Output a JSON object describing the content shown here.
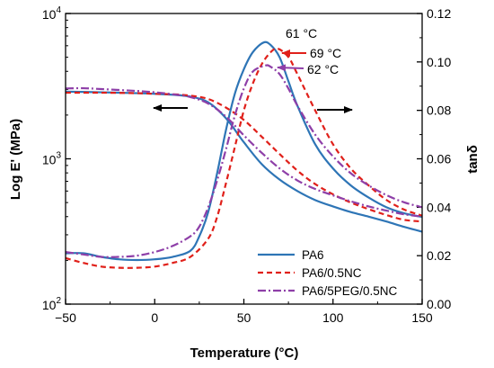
{
  "chart_data": {
    "type": "line",
    "title": "",
    "xlabel": "Temperature (°C)",
    "ylabel_left": "Log E' (MPa)",
    "ylabel_right": "tanδ",
    "xlim": [
      -50,
      150
    ],
    "ylim_left": [
      100,
      10000
    ],
    "yscale_left": "log",
    "ylim_right": [
      0,
      0.12
    ],
    "grid": false,
    "legend_position": "bottom-right",
    "x_ticks": [
      -50,
      0,
      50,
      100,
      150
    ],
    "y_left_ticks": [
      {
        "value": 100,
        "base": "10",
        "exp": "2"
      },
      {
        "value": 1000,
        "base": "10",
        "exp": "3"
      },
      {
        "value": 10000,
        "base": "10",
        "exp": "4"
      }
    ],
    "y_right_ticks": [
      "0.00",
      "0.02",
      "0.04",
      "0.06",
      "0.08",
      "0.10",
      "0.12"
    ],
    "series": [
      {
        "name": "PA6",
        "color": "#2e75b6",
        "dash": "solid",
        "storage_modulus": {
          "x": [
            -50,
            -30,
            -10,
            0,
            10,
            20,
            30,
            40,
            50,
            60,
            70,
            80,
            90,
            100,
            110,
            120,
            130,
            140,
            150
          ],
          "y": [
            2900,
            2870,
            2830,
            2800,
            2760,
            2680,
            2450,
            1900,
            1300,
            920,
            720,
            600,
            520,
            470,
            430,
            400,
            370,
            340,
            315
          ]
        },
        "tan_delta": {
          "x": [
            -50,
            -40,
            -30,
            -20,
            -10,
            0,
            10,
            20,
            25,
            30,
            35,
            40,
            45,
            50,
            55,
            61,
            65,
            70,
            75,
            80,
            90,
            100,
            110,
            120,
            130,
            140,
            150
          ],
          "y": [
            0.021,
            0.021,
            0.0195,
            0.0185,
            0.0182,
            0.0185,
            0.0195,
            0.022,
            0.028,
            0.038,
            0.054,
            0.072,
            0.087,
            0.097,
            0.104,
            0.108,
            0.107,
            0.102,
            0.092,
            0.082,
            0.066,
            0.056,
            0.049,
            0.044,
            0.04,
            0.0375,
            0.036
          ]
        }
      },
      {
        "name": "PA6/0.5NC",
        "color": "#e0201a",
        "dash": "dashed",
        "storage_modulus": {
          "x": [
            -50,
            -30,
            -10,
            0,
            10,
            20,
            30,
            40,
            50,
            60,
            70,
            80,
            90,
            100,
            110,
            120,
            130,
            140,
            150
          ],
          "y": [
            2850,
            2850,
            2830,
            2800,
            2780,
            2720,
            2580,
            2250,
            1850,
            1420,
            1080,
            830,
            670,
            570,
            500,
            450,
            410,
            380,
            370
          ]
        },
        "tan_delta": {
          "x": [
            -50,
            -40,
            -30,
            -20,
            -10,
            0,
            10,
            20,
            30,
            35,
            40,
            45,
            50,
            55,
            60,
            65,
            69,
            75,
            80,
            90,
            100,
            110,
            120,
            130,
            140,
            150
          ],
          "y": [
            0.019,
            0.017,
            0.0155,
            0.015,
            0.015,
            0.0155,
            0.017,
            0.0195,
            0.027,
            0.036,
            0.05,
            0.065,
            0.08,
            0.091,
            0.099,
            0.104,
            0.1055,
            0.102,
            0.095,
            0.08,
            0.066,
            0.056,
            0.049,
            0.043,
            0.039,
            0.0365
          ]
        }
      },
      {
        "name": "PA6/5PEG/0.5NC",
        "color": "#8e3fa8",
        "dash": "dash-dot",
        "storage_modulus": {
          "x": [
            -50,
            -40,
            -30,
            -10,
            0,
            10,
            20,
            30,
            40,
            50,
            60,
            70,
            80,
            90,
            100,
            110,
            120,
            130,
            140,
            150
          ],
          "y": [
            3050,
            3060,
            3020,
            2930,
            2870,
            2780,
            2660,
            2400,
            1950,
            1450,
            1100,
            860,
            710,
            620,
            560,
            510,
            470,
            440,
            415,
            400
          ]
        },
        "tan_delta": {
          "x": [
            -50,
            -40,
            -30,
            -20,
            -10,
            0,
            10,
            20,
            25,
            30,
            35,
            40,
            45,
            50,
            55,
            62,
            65,
            70,
            75,
            80,
            90,
            100,
            110,
            120,
            130,
            140,
            150
          ],
          "y": [
            0.0215,
            0.0205,
            0.0195,
            0.0195,
            0.02,
            0.0215,
            0.024,
            0.028,
            0.032,
            0.04,
            0.051,
            0.064,
            0.078,
            0.089,
            0.096,
            0.0985,
            0.098,
            0.095,
            0.089,
            0.082,
            0.07,
            0.061,
            0.054,
            0.049,
            0.045,
            0.042,
            0.04
          ]
        }
      }
    ],
    "annotations": [
      {
        "text": "61 °C",
        "series": "PA6"
      },
      {
        "text": "69 °C",
        "series": "PA6/0.5NC"
      },
      {
        "text": "62 °C",
        "series": "PA6/5PEG/0.5NC"
      }
    ],
    "direction_arrows": [
      "left",
      "right"
    ]
  }
}
